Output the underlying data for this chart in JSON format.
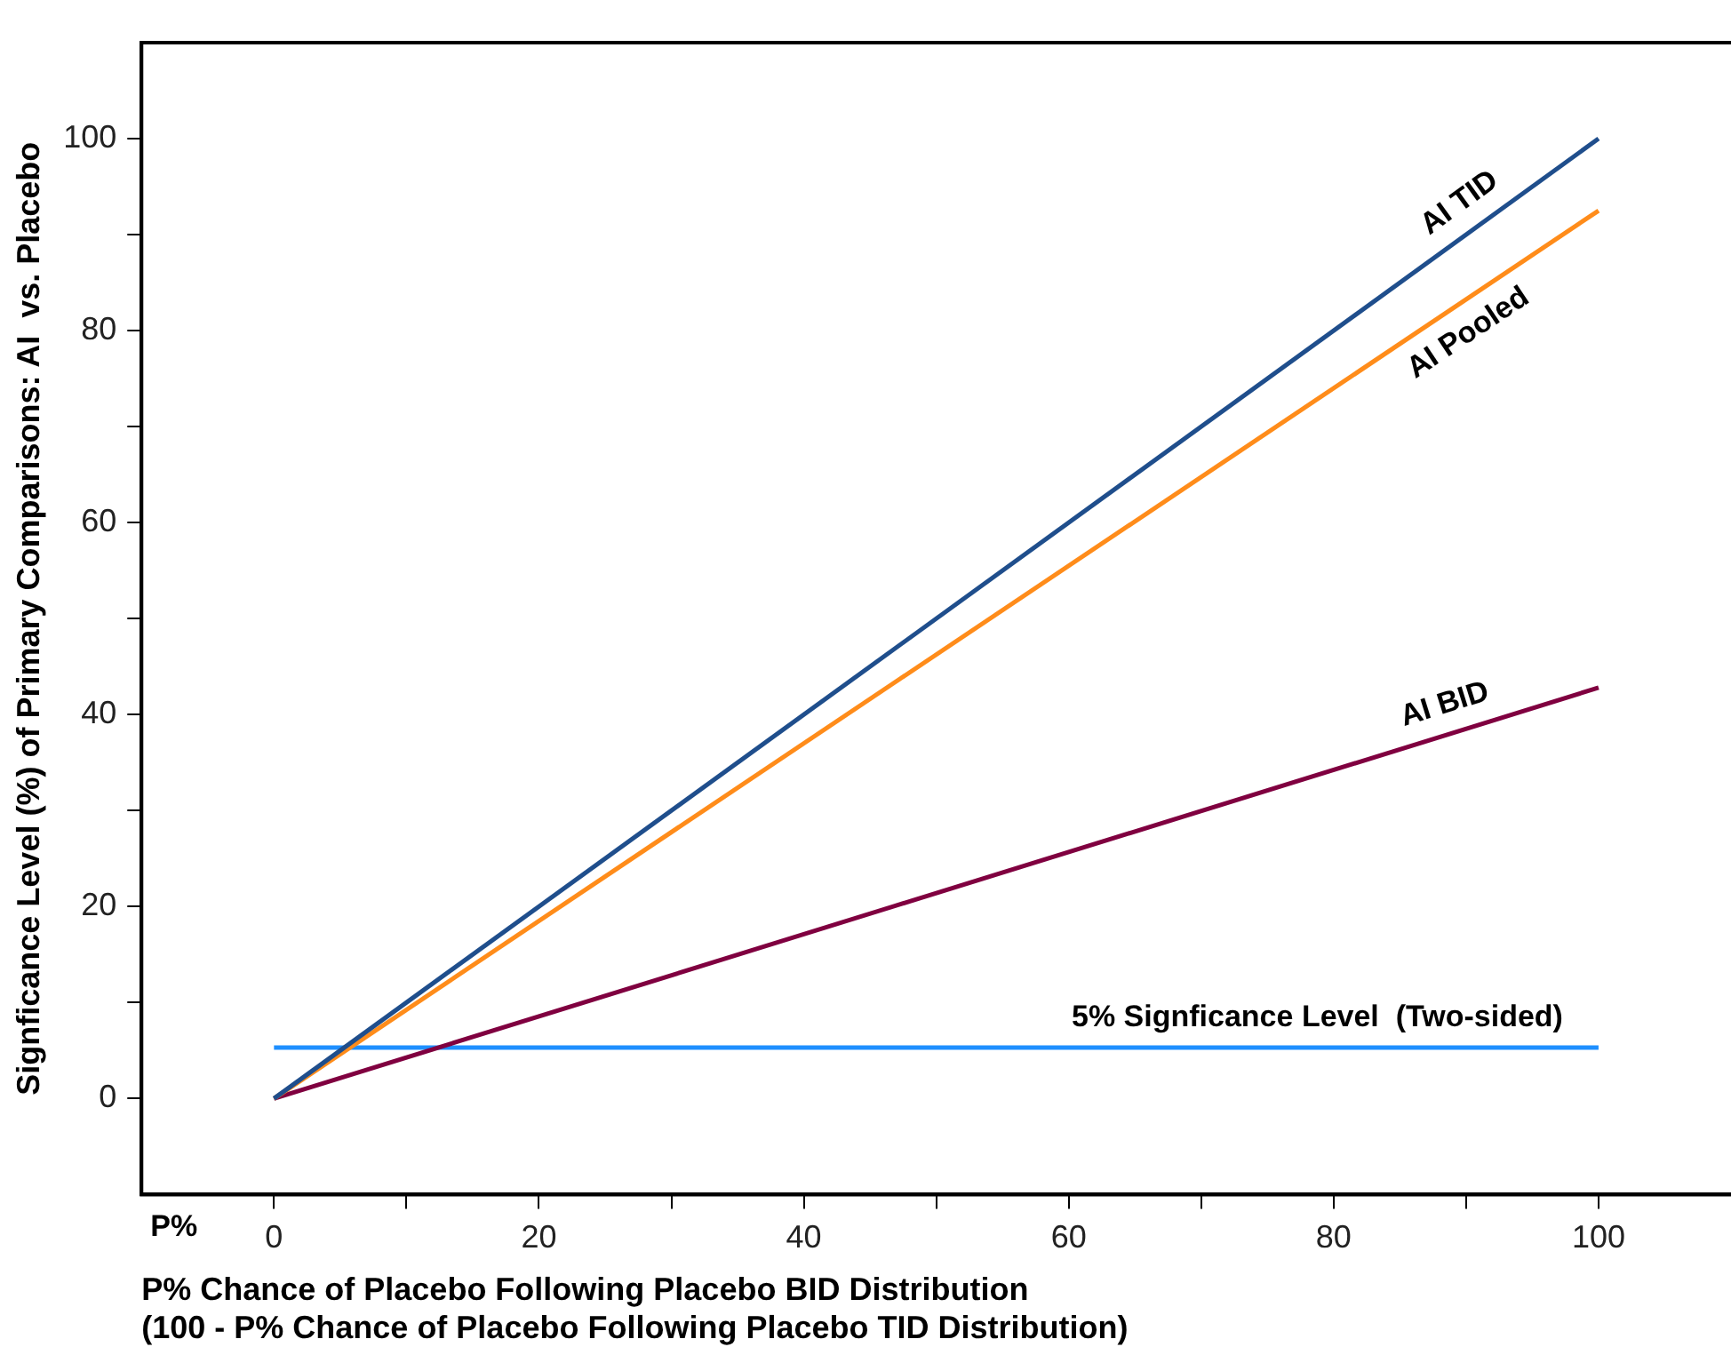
{
  "chart_data": {
    "type": "line",
    "xlabel": "P% Chance of Placebo Following Placebo BID Distribution\n(100 - P% Chance of Placebo Following Placebo TID Distribution)",
    "ylabel": "Signficance Level (%) of Primary Comparisons: AI  vs. Placebo",
    "x": [
      0,
      100
    ],
    "series": [
      {
        "name": "AI TID",
        "color": "#1f4e8c",
        "values": [
          0,
          100
        ]
      },
      {
        "name": "AI Pooled",
        "color": "#ff8c1a",
        "values": [
          0,
          92.5
        ]
      },
      {
        "name": "AI BID",
        "color": "#800040",
        "values": [
          0,
          42.8
        ]
      },
      {
        "name": "5% Signficance Level  (Two-sided)",
        "color": "#1e8fff",
        "values": [
          5.3,
          5.3
        ]
      }
    ],
    "annotations": [
      "P%"
    ],
    "xlim": [
      -10,
      110
    ],
    "ylim": [
      -10,
      110
    ],
    "xticks": [
      0,
      {
        "value": 10,
        "label": null
      },
      20,
      {
        "value": 30,
        "label": null
      },
      40,
      {
        "value": 50,
        "label": null
      },
      60,
      {
        "value": 70,
        "label": null
      },
      80,
      {
        "value": 90,
        "label": null
      },
      100
    ],
    "yticks": [
      0,
      {
        "value": 10,
        "label": null
      },
      20,
      {
        "value": 30,
        "label": null
      },
      40,
      {
        "value": 50,
        "label": null
      },
      60,
      {
        "value": 70,
        "label": null
      },
      80,
      {
        "value": 90,
        "label": null
      },
      100
    ],
    "grid": false,
    "legend": false,
    "marker": "none",
    "line_style": "solid"
  }
}
